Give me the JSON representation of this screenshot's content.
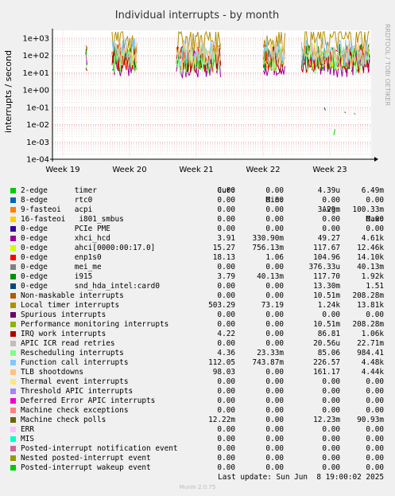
{
  "chart_data": {
    "type": "line",
    "title": "Individual interrupts - by month",
    "ylabel": "interrupts / second",
    "side_text": "RRDTOOL / TOBI OETIKER",
    "yscale": "log",
    "ylim": [
      0.0001,
      3000
    ],
    "y_ticks": [
      "1e+03",
      "1e+02",
      "1e+01",
      "1e+00",
      "1e-01",
      "1e-02",
      "1e-03",
      "1e-04"
    ],
    "x_ticks": [
      "Week 19",
      "Week 20",
      "Week 21",
      "Week 22",
      "Week 23"
    ],
    "grid": true,
    "columns": [
      "Cur:",
      "Min:",
      "Avg:",
      "Max:"
    ],
    "series": [
      {
        "name": "2-edge      timer",
        "color": "#00cc00",
        "cur": "0.00",
        "min": "0.00",
        "avg": "4.39u",
        "max": "6.49m"
      },
      {
        "name": "8-edge      rtc0",
        "color": "#0066b3",
        "cur": "0.00",
        "min": "0.00",
        "avg": "0.00",
        "max": "0.00"
      },
      {
        "name": "9-fasteoi   acpi",
        "color": "#ff8000",
        "cur": "0.00",
        "min": "0.00",
        "avg": "3.29m",
        "max": "100.33m"
      },
      {
        "name": "16-fasteoi   i801_smbus",
        "color": "#ffcc00",
        "cur": "0.00",
        "min": "0.00",
        "avg": "0.00",
        "max": "0.00"
      },
      {
        "name": "0-edge      PCIe PME",
        "color": "#330099",
        "cur": "0.00",
        "min": "0.00",
        "avg": "0.00",
        "max": "0.00"
      },
      {
        "name": "0-edge      xhci_hcd",
        "color": "#990099",
        "cur": "3.91",
        "min": "330.90m",
        "avg": "49.27",
        "max": "4.61k"
      },
      {
        "name": "0-edge      ahci[0000:00:17.0]",
        "color": "#ccff00",
        "cur": "15.27",
        "min": "756.13m",
        "avg": "117.67",
        "max": "12.46k"
      },
      {
        "name": "0-edge      enp1s0",
        "color": "#ff0000",
        "cur": "18.13",
        "min": "1.06",
        "avg": "104.96",
        "max": "14.10k"
      },
      {
        "name": "0-edge      mei_me",
        "color": "#808080",
        "cur": "0.00",
        "min": "0.00",
        "avg": "376.33u",
        "max": "40.13m"
      },
      {
        "name": "0-edge      i915",
        "color": "#008f00",
        "cur": "3.79",
        "min": "40.13m",
        "avg": "117.70",
        "max": "1.92k"
      },
      {
        "name": "0-edge      snd_hda_intel:card0",
        "color": "#00487d",
        "cur": "0.00",
        "min": "0.00",
        "avg": "13.30m",
        "max": "1.51"
      },
      {
        "name": "Non-maskable interrupts",
        "color": "#b35a00",
        "cur": "0.00",
        "min": "0.00",
        "avg": "10.51m",
        "max": "208.28m"
      },
      {
        "name": "Local timer interrupts",
        "color": "#b38f00",
        "cur": "503.29",
        "min": "73.19",
        "avg": "1.24k",
        "max": "13.81k"
      },
      {
        "name": "Spurious interrupts",
        "color": "#6b006b",
        "cur": "0.00",
        "min": "0.00",
        "avg": "0.00",
        "max": "0.00"
      },
      {
        "name": "Performance monitoring interrupts",
        "color": "#8fb300",
        "cur": "0.00",
        "min": "0.00",
        "avg": "10.51m",
        "max": "208.28m"
      },
      {
        "name": "IRQ work interrupts",
        "color": "#b30000",
        "cur": "4.22",
        "min": "0.00",
        "avg": "86.81",
        "max": "1.06k"
      },
      {
        "name": "APIC ICR read retries",
        "color": "#bebebe",
        "cur": "0.00",
        "min": "0.00",
        "avg": "20.56u",
        "max": "22.71m"
      },
      {
        "name": "Rescheduling interrupts",
        "color": "#80ff80",
        "cur": "4.36",
        "min": "23.33m",
        "avg": "85.06",
        "max": "984.41"
      },
      {
        "name": "Function call interrupts",
        "color": "#80c9ff",
        "cur": "112.05",
        "min": "743.87m",
        "avg": "226.57",
        "max": "4.48k"
      },
      {
        "name": "TLB shootdowns",
        "color": "#ffc080",
        "cur": "98.03",
        "min": "0.00",
        "avg": "161.17",
        "max": "4.44k"
      },
      {
        "name": "Thermal event interrupts",
        "color": "#ffe680",
        "cur": "0.00",
        "min": "0.00",
        "avg": "0.00",
        "max": "0.00"
      },
      {
        "name": "Threshold APIC interrupts",
        "color": "#aa80ff",
        "cur": "0.00",
        "min": "0.00",
        "avg": "0.00",
        "max": "0.00"
      },
      {
        "name": "Deferred Error APIC interrupts",
        "color": "#ee00cc",
        "cur": "0.00",
        "min": "0.00",
        "avg": "0.00",
        "max": "0.00"
      },
      {
        "name": "Machine check exceptions",
        "color": "#ff8080",
        "cur": "0.00",
        "min": "0.00",
        "avg": "0.00",
        "max": "0.00"
      },
      {
        "name": "Machine check polls",
        "color": "#666600",
        "cur": "12.22m",
        "min": "0.00",
        "avg": "12.23m",
        "max": "90.93m"
      },
      {
        "name": "ERR",
        "color": "#ffbfff",
        "cur": "0.00",
        "min": "0.00",
        "avg": "0.00",
        "max": "0.00"
      },
      {
        "name": "MIS",
        "color": "#00ffcc",
        "cur": "0.00",
        "min": "0.00",
        "avg": "0.00",
        "max": "0.00"
      },
      {
        "name": "Posted-interrupt notification event",
        "color": "#cc6699",
        "cur": "0.00",
        "min": "0.00",
        "avg": "0.00",
        "max": "0.00"
      },
      {
        "name": "Nested posted-interrupt event",
        "color": "#999900",
        "cur": "0.00",
        "min": "0.00",
        "avg": "0.00",
        "max": "0.00"
      },
      {
        "name": "Posted-interrupt wakeup event",
        "color": "#00cc00",
        "cur": "0.00",
        "min": "0.00",
        "avg": "0.00",
        "max": "0.00"
      }
    ],
    "last_update": "Last update: Sun Jun  8 19:00:02 2025",
    "footer": "Munin 2.0.75"
  }
}
